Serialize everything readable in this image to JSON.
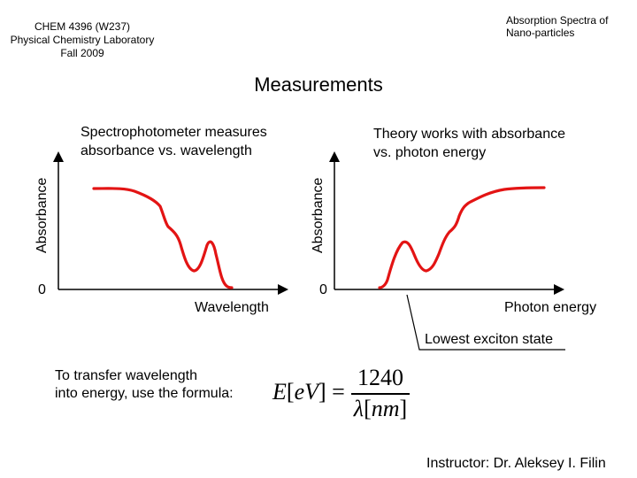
{
  "header": {
    "course_line1": "CHEM 4396 (W237)",
    "course_line2": "Physical Chemistry Laboratory",
    "course_line3": "Fall 2009",
    "topic_line1": "Absorption Spectra of",
    "topic_line2": "Nano-particles"
  },
  "slide": {
    "title": "Measurements"
  },
  "left_panel": {
    "caption_line1": "Spectrophotometer measures",
    "caption_line2": "absorbance vs. wavelength",
    "ylabel": "Absorbance",
    "origin": "0",
    "xlabel": "Wavelength"
  },
  "right_panel": {
    "caption_line1": "Theory works with absorbance",
    "caption_line2": "vs. photon energy",
    "ylabel": "Absorbance",
    "origin": "0",
    "xlabel": "Photon energy",
    "callout": "Lowest exciton state"
  },
  "conversion": {
    "text_line1": "To transfer wavelength",
    "text_line2": "into energy, use the formula:",
    "lhs_symbol": "E",
    "lhs_unit": "eV",
    "numerator": "1240",
    "den_symbol": "λ",
    "den_unit": "nm"
  },
  "footer": {
    "instructor": "Instructor: Dr. Aleksey I. Filin"
  },
  "colors": {
    "curve": "#e31414",
    "axis": "#000000"
  }
}
